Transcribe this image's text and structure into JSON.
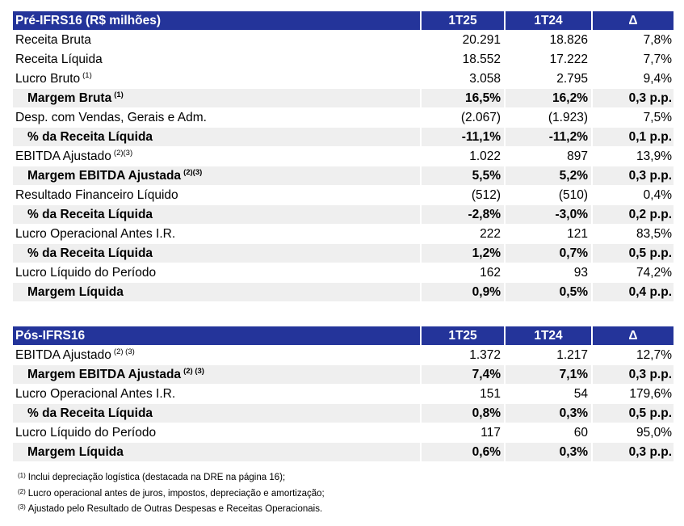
{
  "pre": {
    "header": {
      "label": "Pré-IFRS16 (R$ milhões)",
      "col1": "1T25",
      "col2": "1T24",
      "col3": "Δ"
    },
    "rows": [
      {
        "label": "Receita Bruta",
        "sup": "",
        "v1": "20.291",
        "v2": "18.826",
        "v3": "7,8%",
        "bold": false
      },
      {
        "label": "Receita Líquida",
        "sup": "",
        "v1": "18.552",
        "v2": "17.222",
        "v3": "7,7%",
        "bold": false
      },
      {
        "label": "Lucro Bruto",
        "sup": "(1)",
        "v1": "3.058",
        "v2": "2.795",
        "v3": "9,4%",
        "bold": false
      },
      {
        "label": "Margem Bruta",
        "sup": "(1)",
        "v1": "16,5%",
        "v2": "16,2%",
        "v3": "0,3 p.p.",
        "bold": true
      },
      {
        "label": "Desp. com Vendas, Gerais e Adm.",
        "sup": "",
        "v1": "(2.067)",
        "v2": "(1.923)",
        "v3": "7,5%",
        "bold": false
      },
      {
        "label": "% da Receita Líquida",
        "sup": "",
        "v1": "-11,1%",
        "v2": "-11,2%",
        "v3": "0,1 p.p.",
        "bold": true
      },
      {
        "label": "EBITDA Ajustado",
        "sup": "(2)(3)",
        "v1": "1.022",
        "v2": "897",
        "v3": "13,9%",
        "bold": false
      },
      {
        "label": "Margem EBITDA Ajustada",
        "sup": "(2)(3)",
        "v1": "5,5%",
        "v2": "5,2%",
        "v3": "0,3 p.p.",
        "bold": true
      },
      {
        "label": "Resultado Financeiro Líquido",
        "sup": "",
        "v1": "(512)",
        "v2": "(510)",
        "v3": "0,4%",
        "bold": false
      },
      {
        "label": "% da Receita Líquida",
        "sup": "",
        "v1": "-2,8%",
        "v2": "-3,0%",
        "v3": "0,2 p.p.",
        "bold": true
      },
      {
        "label": "Lucro Operacional Antes I.R.",
        "sup": "",
        "v1": "222",
        "v2": "121",
        "v3": "83,5%",
        "bold": false
      },
      {
        "label": "% da Receita Líquida",
        "sup": "",
        "v1": "1,2%",
        "v2": "0,7%",
        "v3": "0,5 p.p.",
        "bold": true
      },
      {
        "label": "Lucro Líquido do Período",
        "sup": "",
        "v1": "162",
        "v2": "93",
        "v3": "74,2%",
        "bold": false
      },
      {
        "label": "Margem Líquida",
        "sup": "",
        "v1": "0,9%",
        "v2": "0,5%",
        "v3": "0,4 p.p.",
        "bold": true
      }
    ]
  },
  "pos": {
    "header": {
      "label": "Pós-IFRS16",
      "col1": "1T25",
      "col2": "1T24",
      "col3": "Δ"
    },
    "rows": [
      {
        "label": "EBITDA Ajustado",
        "sup": "(2) (3)",
        "v1": "1.372",
        "v2": "1.217",
        "v3": "12,7%",
        "bold": false
      },
      {
        "label": "Margem EBITDA Ajustada",
        "sup": "(2) (3)",
        "v1": "7,4%",
        "v2": "7,1%",
        "v3": "0,3 p.p.",
        "bold": true
      },
      {
        "label": "Lucro Operacional Antes I.R.",
        "sup": "",
        "v1": "151",
        "v2": "54",
        "v3": "179,6%",
        "bold": false
      },
      {
        "label": "% da Receita Líquida",
        "sup": "",
        "v1": "0,8%",
        "v2": "0,3%",
        "v3": "0,5 p.p.",
        "bold": true
      },
      {
        "label": "Lucro Líquido do Período",
        "sup": "",
        "v1": "117",
        "v2": "60",
        "v3": "95,0%",
        "bold": false
      },
      {
        "label": "Margem Líquida",
        "sup": "",
        "v1": "0,6%",
        "v2": "0,3%",
        "v3": "0,3 p.p.",
        "bold": true
      }
    ]
  },
  "notes": [
    {
      "mark": "(1)",
      "text": "Inclui depreciação logística (destacada na DRE na página 16);"
    },
    {
      "mark": "(2)",
      "text": "Lucro operacional antes de juros, impostos, depreciação e amortização;"
    },
    {
      "mark": "(3)",
      "text": "Ajustado pelo Resultado de Outras Despesas e Receitas Operacionais."
    }
  ]
}
